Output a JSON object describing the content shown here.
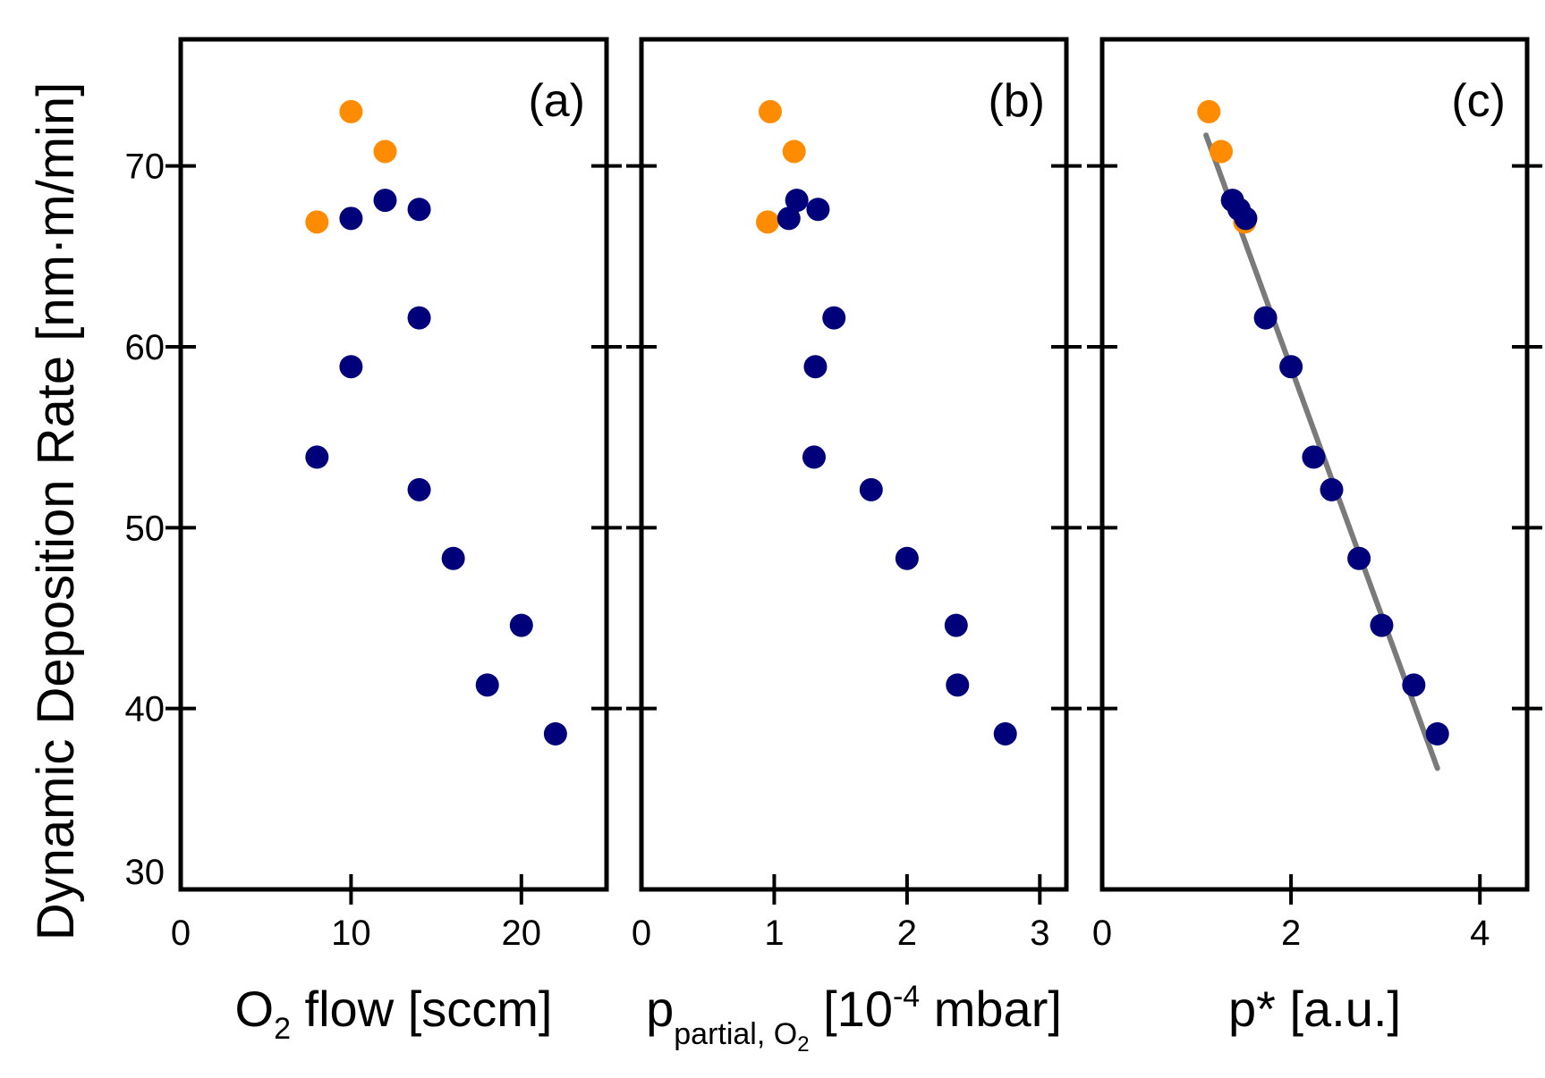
{
  "colors": {
    "series_navy": "#00007a",
    "series_orange": "#ff8c00",
    "fit_line": "#7a7a7a",
    "axis": "#000000"
  },
  "y_axis": {
    "label": "Dynamic Deposition Rate [nm·m/min]",
    "ylim": [
      30,
      77
    ],
    "ticks": [
      30,
      40,
      50,
      60,
      70
    ]
  },
  "chart_data": [
    {
      "type": "scatter",
      "panel_label": "(a)",
      "xlabel_main": "O",
      "xlabel_sub": "2",
      "xlabel_rest": " flow [sccm]",
      "xlim": [
        0,
        25
      ],
      "xticks": [
        0,
        10,
        20
      ],
      "ylim": [
        30,
        77
      ],
      "grid": false,
      "series": [
        {
          "color": "#ff8c00",
          "points": [
            [
              10,
              73.0
            ],
            [
              12,
              70.8
            ],
            [
              8,
              66.9
            ]
          ]
        },
        {
          "color": "#00007a",
          "points": [
            [
              10,
              67.1
            ],
            [
              12,
              68.1
            ],
            [
              14,
              67.6
            ],
            [
              14,
              61.6
            ],
            [
              10,
              58.9
            ],
            [
              8,
              53.9
            ],
            [
              14,
              52.1
            ],
            [
              16,
              48.3
            ],
            [
              20,
              44.6
            ],
            [
              18,
              41.3
            ],
            [
              22,
              38.6
            ]
          ]
        }
      ]
    },
    {
      "type": "scatter",
      "panel_label": "(b)",
      "xlabel_main": "p",
      "xlabel_sub": "partial, O",
      "xlabel_subsub": "2",
      "xlabel_rest": " [10",
      "xlabel_sup": "-4",
      "xlabel_end": " mbar]",
      "xlim": [
        0,
        3.2
      ],
      "xticks": [
        0,
        1,
        2,
        3
      ],
      "ylim": [
        30,
        77
      ],
      "grid": false,
      "series": [
        {
          "color": "#ff8c00",
          "points": [
            [
              0.97,
              73.0
            ],
            [
              1.15,
              70.8
            ],
            [
              0.95,
              66.9
            ]
          ]
        },
        {
          "color": "#00007a",
          "points": [
            [
              1.11,
              67.1
            ],
            [
              1.17,
              68.1
            ],
            [
              1.33,
              67.6
            ],
            [
              1.45,
              61.6
            ],
            [
              1.31,
              58.9
            ],
            [
              1.3,
              53.9
            ],
            [
              1.73,
              52.1
            ],
            [
              2.0,
              48.3
            ],
            [
              2.37,
              44.6
            ],
            [
              2.38,
              41.3
            ],
            [
              2.74,
              38.6
            ]
          ]
        }
      ]
    },
    {
      "type": "scatter",
      "panel_label": "(c)",
      "xlabel_main": "p* [a.u.]",
      "xlim": [
        0,
        4.5
      ],
      "xticks": [
        0,
        2,
        4
      ],
      "ylim": [
        30,
        77
      ],
      "grid": false,
      "series": [
        {
          "color": "#ff8c00",
          "points": [
            [
              1.13,
              73.0
            ],
            [
              1.26,
              70.8
            ],
            [
              1.51,
              66.9
            ]
          ]
        },
        {
          "color": "#00007a",
          "points": [
            [
              1.52,
              67.1
            ],
            [
              1.38,
              68.1
            ],
            [
              1.45,
              67.6
            ],
            [
              1.73,
              61.6
            ],
            [
              2.0,
              58.9
            ],
            [
              2.24,
              53.9
            ],
            [
              2.43,
              52.1
            ],
            [
              2.72,
              48.3
            ],
            [
              2.96,
              44.6
            ],
            [
              3.3,
              41.3
            ],
            [
              3.55,
              38.6
            ]
          ]
        }
      ],
      "fit_line": {
        "color": "#7a7a7a",
        "from": [
          1.1,
          71.7
        ],
        "to": [
          3.55,
          36.7
        ]
      }
    }
  ]
}
